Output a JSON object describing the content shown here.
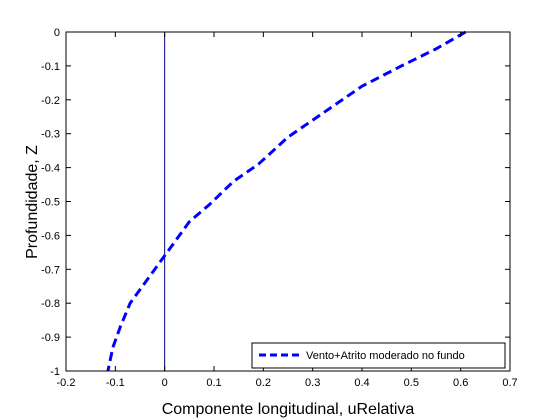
{
  "chart_data": {
    "type": "line",
    "title": "",
    "xlabel": "Componente longitudinal, uRelativa",
    "ylabel": "Profundidade, Z",
    "xlim": [
      -0.2,
      0.7
    ],
    "ylim": [
      -1,
      0
    ],
    "x_ticks": [
      -0.2,
      -0.1,
      0,
      0.1,
      0.2,
      0.3,
      0.4,
      0.5,
      0.6,
      0.7
    ],
    "x_tick_labels": [
      "-0.2",
      "-0.1",
      "0",
      "0.1",
      "0.2",
      "0.3",
      "0.4",
      "0.5",
      "0.6",
      "0.7"
    ],
    "y_ticks": [
      0,
      -0.1,
      -0.2,
      -0.3,
      -0.4,
      -0.5,
      -0.6,
      -0.7,
      -0.8,
      -0.9,
      -1
    ],
    "y_tick_labels": [
      "0",
      "-0.1",
      "-0.2",
      "-0.3",
      "-0.4",
      "-0.5",
      "-0.6",
      "-0.7",
      "-0.8",
      "-0.9",
      "-1"
    ],
    "grid": false,
    "reference_line": {
      "x": 0,
      "color": "#000080"
    },
    "legend_position": "bottom-right",
    "series": [
      {
        "name": "Vento+Atrito moderado no fundo",
        "color": "#0000ff",
        "style": "dashed",
        "x": [
          0.61,
          0.55,
          0.48,
          0.4,
          0.32,
          0.25,
          0.19,
          0.14,
          0.09,
          0.05,
          0.02,
          -0.01,
          -0.04,
          -0.07,
          -0.09,
          -0.105,
          -0.115
        ],
        "y": [
          0,
          -0.05,
          -0.1,
          -0.16,
          -0.24,
          -0.31,
          -0.39,
          -0.44,
          -0.51,
          -0.56,
          -0.62,
          -0.68,
          -0.74,
          -0.8,
          -0.87,
          -0.93,
          -1.0
        ]
      }
    ]
  }
}
